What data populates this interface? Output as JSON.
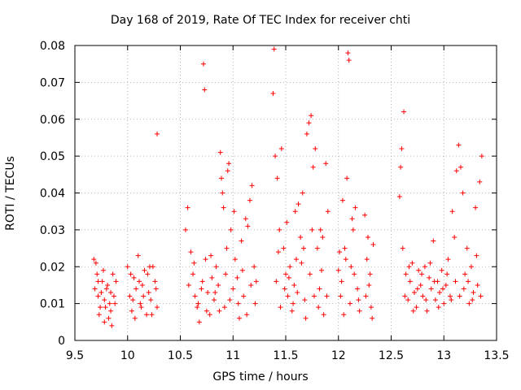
{
  "chart_data": {
    "type": "scatter",
    "title": "Day 168 of 2019, Rate Of TEC Index for receiver chti",
    "xlabel": "GPS time / hours",
    "ylabel": "ROTI / TECUs",
    "xlim": [
      9.5,
      13.5
    ],
    "ylim": [
      0,
      0.08
    ],
    "xticks": [
      9.5,
      10,
      10.5,
      11,
      11.5,
      12,
      12.5,
      13,
      13.5
    ],
    "xtick_labels": [
      "9.5",
      "10",
      "10.5",
      "11",
      "11.5",
      "12",
      "12.5",
      "13",
      "13.5"
    ],
    "yticks": [
      0,
      0.01,
      0.02,
      0.03,
      0.04,
      0.05,
      0.06,
      0.07,
      0.08
    ],
    "ytick_labels": [
      "0",
      "0.01",
      "0.02",
      "0.03",
      "0.04",
      "0.05",
      "0.06",
      "0.07",
      "0.08"
    ],
    "grid": true,
    "marker": "+",
    "color": "#ff0000",
    "series": [
      {
        "name": "ROTI",
        "points": [
          [
            9.68,
            0.022
          ],
          [
            9.7,
            0.021
          ],
          [
            9.72,
            0.012
          ],
          [
            9.74,
            0.009
          ],
          [
            9.76,
            0.016
          ],
          [
            9.78,
            0.011
          ],
          [
            9.8,
            0.014
          ],
          [
            9.82,
            0.006
          ],
          [
            9.84,
            0.013
          ],
          [
            9.86,
            0.018
          ],
          [
            9.88,
            0.01
          ],
          [
            9.71,
            0.018
          ],
          [
            9.73,
            0.007
          ],
          [
            9.75,
            0.013
          ],
          [
            9.77,
            0.019
          ],
          [
            9.79,
            0.009
          ],
          [
            9.81,
            0.015
          ],
          [
            9.83,
            0.01
          ],
          [
            9.85,
            0.004
          ],
          [
            9.87,
            0.012
          ],
          [
            9.89,
            0.016
          ],
          [
            9.69,
            0.014
          ],
          [
            9.72,
            0.016
          ],
          [
            9.78,
            0.005
          ],
          [
            9.84,
            0.008
          ],
          [
            10.0,
            0.02
          ],
          [
            10.02,
            0.012
          ],
          [
            10.04,
            0.008
          ],
          [
            10.06,
            0.017
          ],
          [
            10.08,
            0.014
          ],
          [
            10.1,
            0.023
          ],
          [
            10.12,
            0.01
          ],
          [
            10.14,
            0.015
          ],
          [
            10.16,
            0.019
          ],
          [
            10.18,
            0.007
          ],
          [
            10.2,
            0.013
          ],
          [
            10.22,
            0.011
          ],
          [
            10.24,
            0.02
          ],
          [
            10.26,
            0.016
          ],
          [
            10.28,
            0.009
          ],
          [
            10.03,
            0.018
          ],
          [
            10.07,
            0.006
          ],
          [
            10.11,
            0.016
          ],
          [
            10.15,
            0.012
          ],
          [
            10.19,
            0.018
          ],
          [
            10.23,
            0.007
          ],
          [
            10.27,
            0.014
          ],
          [
            10.05,
            0.011
          ],
          [
            10.13,
            0.009
          ],
          [
            10.21,
            0.02
          ],
          [
            10.28,
            0.056
          ],
          [
            10.55,
            0.03
          ],
          [
            10.57,
            0.036
          ],
          [
            10.6,
            0.024
          ],
          [
            10.62,
            0.018
          ],
          [
            10.64,
            0.012
          ],
          [
            10.66,
            0.009
          ],
          [
            10.68,
            0.005
          ],
          [
            10.7,
            0.014
          ],
          [
            10.72,
            0.075
          ],
          [
            10.73,
            0.068
          ],
          [
            10.74,
            0.022
          ],
          [
            10.76,
            0.013
          ],
          [
            10.78,
            0.007
          ],
          [
            10.8,
            0.017
          ],
          [
            10.82,
            0.011
          ],
          [
            10.84,
            0.02
          ],
          [
            10.86,
            0.015
          ],
          [
            10.88,
            0.051
          ],
          [
            10.89,
            0.044
          ],
          [
            10.9,
            0.04
          ],
          [
            10.91,
            0.036
          ],
          [
            10.92,
            0.009
          ],
          [
            10.94,
            0.025
          ],
          [
            10.95,
            0.046
          ],
          [
            10.96,
            0.048
          ],
          [
            10.98,
            0.03
          ],
          [
            11.0,
            0.014
          ],
          [
            11.02,
            0.022
          ],
          [
            11.04,
            0.017
          ],
          [
            11.06,
            0.006
          ],
          [
            11.08,
            0.027
          ],
          [
            11.1,
            0.012
          ],
          [
            11.12,
            0.033
          ],
          [
            11.14,
            0.031
          ],
          [
            11.16,
            0.038
          ],
          [
            11.18,
            0.042
          ],
          [
            11.2,
            0.02
          ],
          [
            11.22,
            0.016
          ],
          [
            10.58,
            0.015
          ],
          [
            10.63,
            0.021
          ],
          [
            10.67,
            0.01
          ],
          [
            10.71,
            0.016
          ],
          [
            10.75,
            0.008
          ],
          [
            10.79,
            0.023
          ],
          [
            10.83,
            0.013
          ],
          [
            10.87,
            0.008
          ],
          [
            10.93,
            0.018
          ],
          [
            10.97,
            0.011
          ],
          [
            11.01,
            0.035
          ],
          [
            11.05,
            0.01
          ],
          [
            11.09,
            0.019
          ],
          [
            11.13,
            0.007
          ],
          [
            11.17,
            0.015
          ],
          [
            11.21,
            0.01
          ],
          [
            11.38,
            0.067
          ],
          [
            11.39,
            0.079
          ],
          [
            11.4,
            0.05
          ],
          [
            11.42,
            0.044
          ],
          [
            11.44,
            0.03
          ],
          [
            11.46,
            0.052
          ],
          [
            11.48,
            0.025
          ],
          [
            11.5,
            0.018
          ],
          [
            11.52,
            0.012
          ],
          [
            11.54,
            0.02
          ],
          [
            11.56,
            0.008
          ],
          [
            11.58,
            0.015
          ],
          [
            11.6,
            0.022
          ],
          [
            11.62,
            0.037
          ],
          [
            11.64,
            0.028
          ],
          [
            11.66,
            0.04
          ],
          [
            11.68,
            0.011
          ],
          [
            11.7,
            0.056
          ],
          [
            11.72,
            0.059
          ],
          [
            11.74,
            0.061
          ],
          [
            11.76,
            0.047
          ],
          [
            11.78,
            0.052
          ],
          [
            11.8,
            0.025
          ],
          [
            11.82,
            0.014
          ],
          [
            11.84,
            0.019
          ],
          [
            11.86,
            0.007
          ],
          [
            11.88,
            0.048
          ],
          [
            11.9,
            0.035
          ],
          [
            11.41,
            0.016
          ],
          [
            11.45,
            0.009
          ],
          [
            11.49,
            0.014
          ],
          [
            11.53,
            0.017
          ],
          [
            11.57,
            0.01
          ],
          [
            11.61,
            0.013
          ],
          [
            11.65,
            0.021
          ],
          [
            11.69,
            0.006
          ],
          [
            11.73,
            0.018
          ],
          [
            11.77,
            0.012
          ],
          [
            11.81,
            0.009
          ],
          [
            11.85,
            0.028
          ],
          [
            11.89,
            0.012
          ],
          [
            11.43,
            0.024
          ],
          [
            11.51,
            0.032
          ],
          [
            11.59,
            0.035
          ],
          [
            11.67,
            0.025
          ],
          [
            11.75,
            0.03
          ],
          [
            11.83,
            0.03
          ],
          [
            12.0,
            0.019
          ],
          [
            12.02,
            0.012
          ],
          [
            12.04,
            0.038
          ],
          [
            12.06,
            0.025
          ],
          [
            12.08,
            0.044
          ],
          [
            12.09,
            0.078
          ],
          [
            12.1,
            0.076
          ],
          [
            12.12,
            0.02
          ],
          [
            12.14,
            0.03
          ],
          [
            12.16,
            0.036
          ],
          [
            12.18,
            0.014
          ],
          [
            12.2,
            0.008
          ],
          [
            12.03,
            0.016
          ],
          [
            12.07,
            0.022
          ],
          [
            12.11,
            0.01
          ],
          [
            12.15,
            0.018
          ],
          [
            12.19,
            0.011
          ],
          [
            12.01,
            0.024
          ],
          [
            12.05,
            0.007
          ],
          [
            12.13,
            0.033
          ],
          [
            12.25,
            0.034
          ],
          [
            12.27,
            0.022
          ],
          [
            12.29,
            0.015
          ],
          [
            12.31,
            0.009
          ],
          [
            12.33,
            0.026
          ],
          [
            12.26,
            0.012
          ],
          [
            12.3,
            0.018
          ],
          [
            12.32,
            0.006
          ],
          [
            12.28,
            0.028
          ],
          [
            12.58,
            0.039
          ],
          [
            12.59,
            0.047
          ],
          [
            12.6,
            0.052
          ],
          [
            12.62,
            0.062
          ],
          [
            12.61,
            0.025
          ],
          [
            12.64,
            0.018
          ],
          [
            12.66,
            0.011
          ],
          [
            12.68,
            0.016
          ],
          [
            12.7,
            0.021
          ],
          [
            12.72,
            0.013
          ],
          [
            12.74,
            0.009
          ],
          [
            12.76,
            0.019
          ],
          [
            12.78,
            0.015
          ],
          [
            12.8,
            0.012
          ],
          [
            12.82,
            0.02
          ],
          [
            12.84,
            0.008
          ],
          [
            12.86,
            0.017
          ],
          [
            12.88,
            0.014
          ],
          [
            12.9,
            0.027
          ],
          [
            12.92,
            0.011
          ],
          [
            12.94,
            0.016
          ],
          [
            12.96,
            0.013
          ],
          [
            12.98,
            0.019
          ],
          [
            13.0,
            0.01
          ],
          [
            13.02,
            0.015
          ],
          [
            13.04,
            0.022
          ],
          [
            13.06,
            0.012
          ],
          [
            13.08,
            0.035
          ],
          [
            13.1,
            0.028
          ],
          [
            13.12,
            0.046
          ],
          [
            13.14,
            0.053
          ],
          [
            13.16,
            0.047
          ],
          [
            13.18,
            0.04
          ],
          [
            13.2,
            0.018
          ],
          [
            13.22,
            0.025
          ],
          [
            13.24,
            0.01
          ],
          [
            13.26,
            0.02
          ],
          [
            13.28,
            0.013
          ],
          [
            13.3,
            0.036
          ],
          [
            13.32,
            0.015
          ],
          [
            13.34,
            0.043
          ],
          [
            13.36,
            0.05
          ],
          [
            12.63,
            0.012
          ],
          [
            12.67,
            0.02
          ],
          [
            12.71,
            0.008
          ],
          [
            12.75,
            0.014
          ],
          [
            12.79,
            0.018
          ],
          [
            12.83,
            0.011
          ],
          [
            12.87,
            0.021
          ],
          [
            12.91,
            0.016
          ],
          [
            12.95,
            0.009
          ],
          [
            12.99,
            0.014
          ],
          [
            13.03,
            0.018
          ],
          [
            13.07,
            0.011
          ],
          [
            13.11,
            0.016
          ],
          [
            13.15,
            0.012
          ],
          [
            13.19,
            0.014
          ],
          [
            13.23,
            0.016
          ],
          [
            13.27,
            0.011
          ],
          [
            13.31,
            0.023
          ],
          [
            13.35,
            0.012
          ]
        ]
      }
    ]
  }
}
